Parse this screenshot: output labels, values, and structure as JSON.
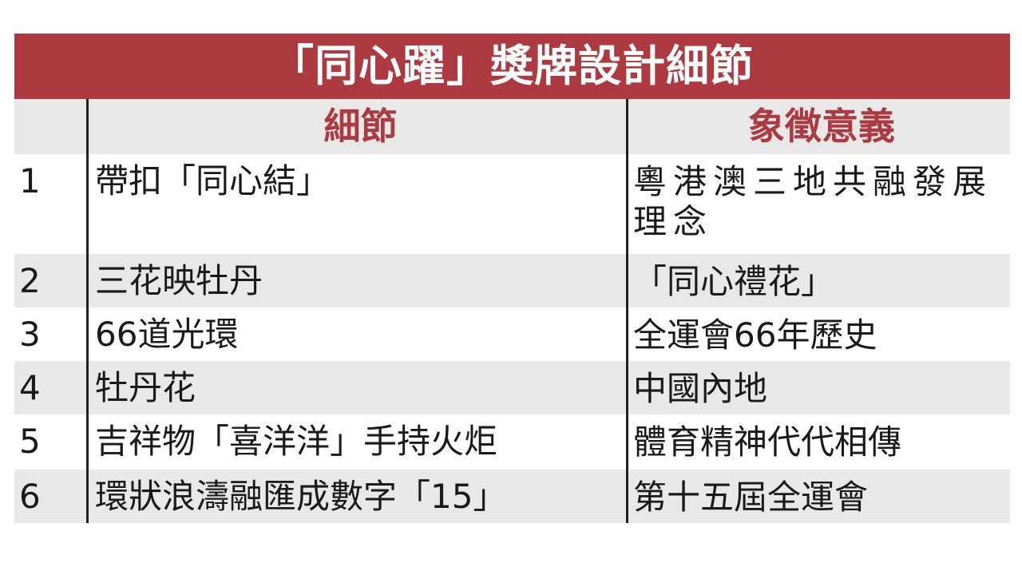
{
  "title": "「同心躍」獎牌設計細節",
  "headers": {
    "index": "",
    "detail": "細節",
    "meaning": "象徵意義"
  },
  "rows": [
    {
      "index": "1",
      "detail": "帶扣「同心結」",
      "meaning": "粵港澳三地共融發展理念"
    },
    {
      "index": "2",
      "detail": "三花映牡丹",
      "meaning": "「同心禮花」"
    },
    {
      "index": "3",
      "detail": "66道光環",
      "meaning": "全運會66年歷史"
    },
    {
      "index": "4",
      "detail": "牡丹花",
      "meaning": "中國內地"
    },
    {
      "index": "5",
      "detail": "吉祥物「喜洋洋」手持火炬",
      "meaning": "體育精神代代相傳"
    },
    {
      "index": "6",
      "detail": "環狀浪濤融匯成數字「15」",
      "meaning": "第十五屆全運會"
    }
  ],
  "colors": {
    "accent": "#ac3a40",
    "stripe": "#e8e8e8"
  }
}
